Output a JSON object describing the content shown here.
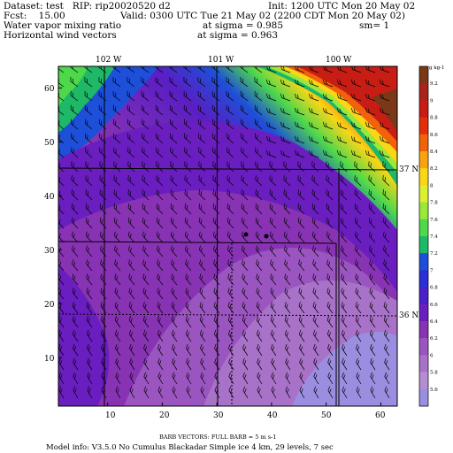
{
  "header": {
    "dataset_line": "Dataset: test   RIP: rip20020520 d2",
    "init_line": "Init: 1200 UTC Mon 20 May 02",
    "fcst_line": "Fcst:    15.00",
    "valid_line": "Valid: 0300 UTC Tue 21 May 02 (2200 CDT Mon 20 May 02)",
    "field1_line": "Water vapor mixing ratio",
    "sigma1_line": "at sigma = 0.985",
    "sm_line": "sm= 1",
    "field2_line": "Horizontal wind vectors",
    "sigma2_line": "at sigma = 0.963"
  },
  "top_axis": {
    "labels": [
      "102 W",
      "101 W",
      "100 W"
    ],
    "values": [
      102,
      101,
      100
    ]
  },
  "right_axis": {
    "labels": [
      "37 N",
      "36 N"
    ]
  },
  "grid_axes": {
    "x_ticks": [
      10,
      20,
      30,
      40,
      50,
      60
    ],
    "y_ticks": [
      10,
      20,
      30,
      40,
      50,
      60
    ],
    "xlim": [
      1,
      63
    ],
    "ylim": [
      1,
      64
    ]
  },
  "colorbar": {
    "unit": "g kg-1",
    "labels": [
      "9.2",
      "9",
      "8.8",
      "8.6",
      "8.4",
      "8.2",
      "8",
      "7.8",
      "7.6",
      "7.4",
      "7.2",
      "7",
      "6.8",
      "6.6",
      "6.4",
      "6.2",
      "6",
      "5.8",
      "5.6"
    ],
    "colors": [
      "#7a3818",
      "#a8231a",
      "#c81d14",
      "#e22e0c",
      "#f1620a",
      "#f9a30e",
      "#f9d616",
      "#dbf030",
      "#9ae83a",
      "#4ed84c",
      "#1fb867",
      "#1e4fd8",
      "#2a2fd8",
      "#4a20c8",
      "#6a1ec0",
      "#8833b4",
      "#9b55c0",
      "#a872c8",
      "#b48ed0",
      "#9b8ee0"
    ]
  },
  "footer": {
    "barb_line": "BARB VECTORS:  FULL BARB = 5 m s-1",
    "model_line": "Model info: V3.5.0 No Cumulus Blackadar  Simple ice    4 km,  29 levels,      7 sec"
  },
  "colors": {
    "moist_high": "#c81d14",
    "moist_low": "#9b8ee0",
    "mid_blue": "#1e4fd8"
  }
}
